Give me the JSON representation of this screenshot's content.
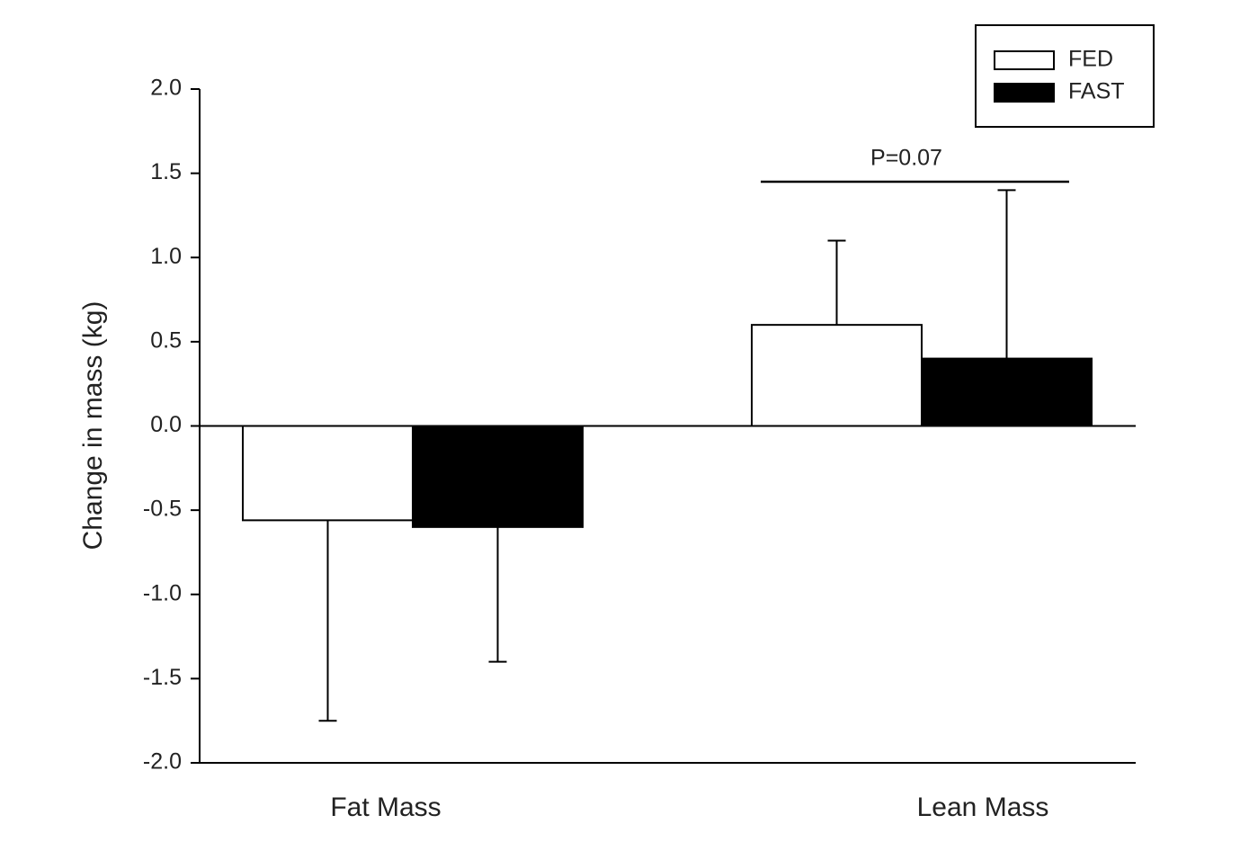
{
  "chart_data": {
    "type": "bar",
    "ylabel": "Change in mass (kg)",
    "categories": [
      "Fat Mass",
      "Lean Mass"
    ],
    "series": [
      {
        "name": "FED",
        "color": "#ffffff",
        "values": [
          -0.56,
          0.6
        ],
        "errors": [
          1.19,
          0.5
        ]
      },
      {
        "name": "FAST",
        "color": "#000000",
        "values": [
          -0.6,
          0.4
        ],
        "errors": [
          0.8,
          1.0
        ]
      }
    ],
    "ylim": [
      -2,
      2
    ],
    "yticks": [
      {
        "value": -2,
        "label": "-2.0"
      },
      -1.5,
      {
        "value": -1,
        "label": "-1.0"
      },
      -0.5,
      {
        "value": 0,
        "label": "0.0"
      },
      0.5,
      {
        "value": 1,
        "label": "1.0"
      },
      1.5,
      {
        "value": 2,
        "label": "2.0"
      }
    ],
    "annotations": [
      {
        "text": "P=0.07"
      }
    ],
    "legend": "upper right"
  }
}
